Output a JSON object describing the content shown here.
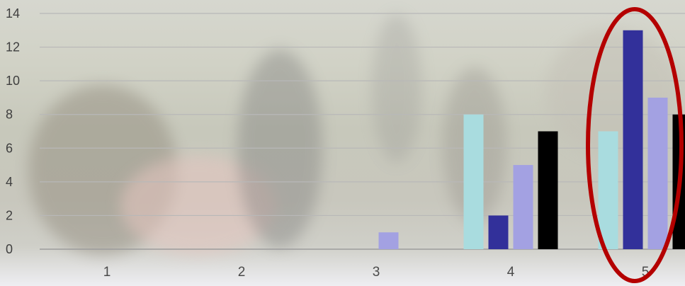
{
  "chart_data": {
    "type": "bar",
    "categories": [
      "1",
      "2",
      "3",
      "4",
      "5"
    ],
    "series": [
      {
        "color": "#a9dcdf",
        "values": [
          0,
          0,
          0,
          8,
          7
        ]
      },
      {
        "color": "#32309a",
        "values": [
          0,
          0,
          0,
          2,
          13
        ]
      },
      {
        "color": "#a3a1e2",
        "values": [
          0,
          0,
          1,
          5,
          9
        ]
      },
      {
        "color": "#000000",
        "values": [
          0,
          0,
          0,
          7,
          8
        ]
      }
    ],
    "y_ticks": [
      "0",
      "2",
      "4",
      "6",
      "8",
      "10",
      "12",
      "14"
    ],
    "ylim": [
      0,
      14
    ],
    "grid": true,
    "legend": "none",
    "highlight": {
      "category": "5",
      "shape": "ellipse",
      "color": "#b40000"
    }
  }
}
